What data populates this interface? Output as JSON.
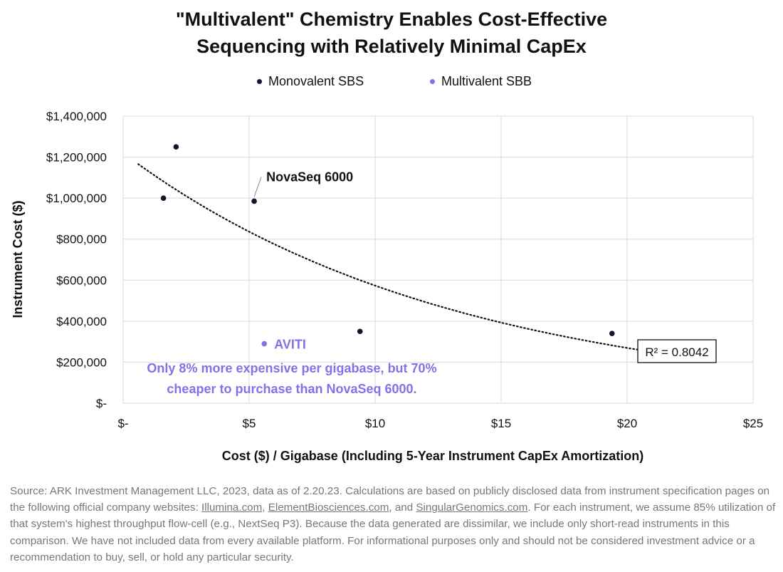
{
  "chart_data": {
    "type": "scatter",
    "title": [
      "\"Multivalent\" Chemistry Enables Cost-Effective",
      "Sequencing with Relatively Minimal CapEx"
    ],
    "xlabel": "Cost ($) / Gigabase (Including 5-Year Instrument CapEx Amortization)",
    "ylabel": "Instrument Cost ($)",
    "xlim": [
      0,
      25
    ],
    "ylim": [
      0,
      1400000
    ],
    "x_ticks": [
      0,
      5,
      10,
      15,
      20,
      25
    ],
    "x_tick_labels": [
      "$-",
      "$5",
      "$10",
      "$15",
      "$20",
      "$25"
    ],
    "y_ticks": [
      0,
      200000,
      400000,
      600000,
      800000,
      1000000,
      1200000,
      1400000
    ],
    "y_tick_labels": [
      "$-",
      "$200,000",
      "$400,000",
      "$600,000",
      "$800,000",
      "$1,000,000",
      "$1,200,000",
      "$1,400,000"
    ],
    "grid": true,
    "legend_position": "top",
    "series": [
      {
        "name": "Monovalent SBS",
        "color": "#14142b",
        "points": [
          {
            "x": 2.1,
            "y": 1250000
          },
          {
            "x": 1.6,
            "y": 1000000
          },
          {
            "x": 5.2,
            "y": 985000
          },
          {
            "x": 9.4,
            "y": 350000
          },
          {
            "x": 19.4,
            "y": 340000
          }
        ]
      },
      {
        "name": "Multivalent SBB",
        "color": "#8470e8",
        "points": [
          {
            "x": 5.6,
            "y": 290000
          }
        ]
      }
    ],
    "trendline": {
      "type": "exponential",
      "a": 1220000,
      "b": -0.0755,
      "x_range": [
        0.6,
        20.8
      ],
      "r_squared_label": "R² = 0.8042"
    },
    "annotations": {
      "novaseq": {
        "text": "NovaSeq 6000",
        "x": 5.2,
        "y": 985000
      },
      "aviti": {
        "text": "AVITI",
        "x": 5.6,
        "y": 290000
      },
      "aviti_note": [
        "Only 8% more expensive per gigabase, but 70%",
        "cheaper to purchase than NovaSeq 6000."
      ]
    }
  },
  "colors": {
    "grid": "#d9d9d9",
    "accent": "#8470e8",
    "text": "#111111"
  },
  "source": {
    "pre": "Source: ARK Investment Management LLC, 2023, data as of 2.20.23. Calculations are based on publicly disclosed data from instrument specification pages on the following official company websites: ",
    "link1": "Illumina.com",
    "sep1": ", ",
    "link2": "ElementBiosciences.com",
    "sep2": ", and ",
    "link3": "SingularGenomics.com",
    "post": ". For each instrument, we assume 85% utilization of that system's highest throughput flow-cell (e.g., NextSeq P3). Because the data generated are dissimilar, we include only short-read instruments in this comparison. We have not included data from every available platform. For informational purposes only and should not be considered investment advice or a recommendation to buy, sell, or hold any particular security."
  }
}
